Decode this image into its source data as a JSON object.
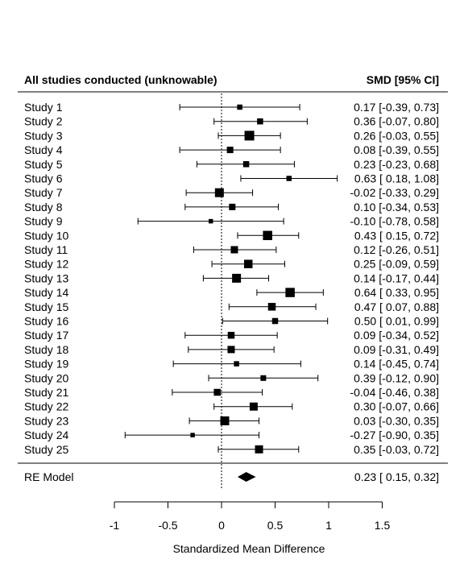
{
  "chart_data": {
    "type": "forest",
    "header_left": "All studies conducted (unknowable)",
    "header_right": "SMD [95% CI]",
    "xlabel": "Standardized Mean Difference",
    "xlim": [
      -1,
      1.5
    ],
    "xticks": [
      "-1",
      "-0.5",
      "0",
      "0.5",
      "1",
      "1.5"
    ],
    "xtick_values": [
      -1,
      -0.5,
      0,
      0.5,
      1,
      1.5
    ],
    "reference_line": 0,
    "studies": [
      {
        "label": "Study 1",
        "est": 0.17,
        "lo": -0.39,
        "hi": 0.73,
        "weight": 0.9,
        "ci_text": "0.17 [-0.39, 0.73]"
      },
      {
        "label": "Study 2",
        "est": 0.36,
        "lo": -0.07,
        "hi": 0.8,
        "weight": 1.1,
        "ci_text": "0.36 [-0.07, 0.80]"
      },
      {
        "label": "Study 3",
        "est": 0.26,
        "lo": -0.03,
        "hi": 0.55,
        "weight": 2.0,
        "ci_text": "0.26 [-0.03, 0.55]"
      },
      {
        "label": "Study 4",
        "est": 0.08,
        "lo": -0.39,
        "hi": 0.55,
        "weight": 1.2,
        "ci_text": "0.08 [-0.39, 0.55]"
      },
      {
        "label": "Study 5",
        "est": 0.23,
        "lo": -0.23,
        "hi": 0.68,
        "weight": 1.1,
        "ci_text": "0.23 [-0.23, 0.68]"
      },
      {
        "label": "Study 6",
        "est": 0.63,
        "lo": 0.18,
        "hi": 1.08,
        "weight": 0.9,
        "ci_text": "0.63 [ 0.18, 1.08]"
      },
      {
        "label": "Study 7",
        "est": -0.02,
        "lo": -0.33,
        "hi": 0.29,
        "weight": 1.8,
        "ci_text": "-0.02 [-0.33, 0.29]"
      },
      {
        "label": "Study 8",
        "est": 0.1,
        "lo": -0.34,
        "hi": 0.53,
        "weight": 1.2,
        "ci_text": "0.10 [-0.34, 0.53]"
      },
      {
        "label": "Study 9",
        "est": -0.1,
        "lo": -0.78,
        "hi": 0.58,
        "weight": 0.7,
        "ci_text": "-0.10 [-0.78, 0.58]"
      },
      {
        "label": "Study 10",
        "est": 0.43,
        "lo": 0.15,
        "hi": 0.72,
        "weight": 1.9,
        "ci_text": "0.43 [ 0.15, 0.72]"
      },
      {
        "label": "Study 11",
        "est": 0.12,
        "lo": -0.26,
        "hi": 0.51,
        "weight": 1.4,
        "ci_text": "0.12 [-0.26, 0.51]"
      },
      {
        "label": "Study 12",
        "est": 0.25,
        "lo": -0.09,
        "hi": 0.59,
        "weight": 1.7,
        "ci_text": "0.25 [-0.09, 0.59]"
      },
      {
        "label": "Study 13",
        "est": 0.14,
        "lo": -0.17,
        "hi": 0.44,
        "weight": 1.8,
        "ci_text": "0.14 [-0.17, 0.44]"
      },
      {
        "label": "Study 14",
        "est": 0.64,
        "lo": 0.33,
        "hi": 0.95,
        "weight": 1.9,
        "ci_text": "0.64 [ 0.33, 0.95]"
      },
      {
        "label": "Study 15",
        "est": 0.47,
        "lo": 0.07,
        "hi": 0.88,
        "weight": 1.5,
        "ci_text": "0.47 [ 0.07, 0.88]"
      },
      {
        "label": "Study 16",
        "est": 0.5,
        "lo": 0.01,
        "hi": 0.99,
        "weight": 1.1,
        "ci_text": "0.50 [ 0.01, 0.99]"
      },
      {
        "label": "Study 17",
        "est": 0.09,
        "lo": -0.34,
        "hi": 0.52,
        "weight": 1.3,
        "ci_text": "0.09 [-0.34, 0.52]"
      },
      {
        "label": "Study 18",
        "est": 0.09,
        "lo": -0.31,
        "hi": 0.49,
        "weight": 1.4,
        "ci_text": "0.09 [-0.31, 0.49]"
      },
      {
        "label": "Study 19",
        "est": 0.14,
        "lo": -0.45,
        "hi": 0.74,
        "weight": 0.9,
        "ci_text": "0.14 [-0.45, 0.74]"
      },
      {
        "label": "Study 20",
        "est": 0.39,
        "lo": -0.12,
        "hi": 0.9,
        "weight": 1.0,
        "ci_text": "0.39 [-0.12, 0.90]"
      },
      {
        "label": "Study 21",
        "est": -0.04,
        "lo": -0.46,
        "hi": 0.38,
        "weight": 1.3,
        "ci_text": "-0.04 [-0.46, 0.38]"
      },
      {
        "label": "Study 22",
        "est": 0.3,
        "lo": -0.07,
        "hi": 0.66,
        "weight": 1.6,
        "ci_text": "0.30 [-0.07, 0.66]"
      },
      {
        "label": "Study 23",
        "est": 0.03,
        "lo": -0.3,
        "hi": 0.35,
        "weight": 1.8,
        "ci_text": "0.03 [-0.30, 0.35]"
      },
      {
        "label": "Study 24",
        "est": -0.27,
        "lo": -0.9,
        "hi": 0.35,
        "weight": 0.7,
        "ci_text": "-0.27 [-0.90, 0.35]"
      },
      {
        "label": "Study 25",
        "est": 0.35,
        "lo": -0.03,
        "hi": 0.72,
        "weight": 1.6,
        "ci_text": "0.35 [-0.03, 0.72]"
      }
    ],
    "summary": {
      "label": "RE Model",
      "est": 0.23,
      "lo": 0.15,
      "hi": 0.32,
      "ci_text": "0.23 [ 0.15, 0.32]"
    }
  }
}
